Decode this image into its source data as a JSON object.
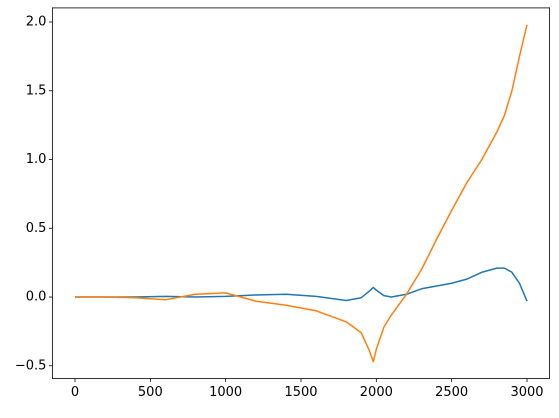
{
  "chart_data": {
    "type": "line",
    "x": [
      0,
      200,
      400,
      600,
      800,
      1000,
      1200,
      1400,
      1600,
      1800,
      1900,
      1950,
      1980,
      2000,
      2050,
      2100,
      2200,
      2300,
      2400,
      2500,
      2600,
      2700,
      2800,
      2850,
      2900,
      2950,
      3000
    ],
    "series": [
      {
        "color": "#1f77b4",
        "values": [
          0,
          0,
          0,
          0.005,
          0,
          0.005,
          0.015,
          0.02,
          0.005,
          -0.025,
          -0.005,
          0.04,
          0.07,
          0.05,
          0.01,
          0.0,
          0.02,
          0.06,
          0.08,
          0.1,
          0.13,
          0.18,
          0.21,
          0.21,
          0.18,
          0.1,
          -0.03
        ]
      },
      {
        "color": "#ff7f0e",
        "values": [
          0,
          0,
          -0.005,
          -0.02,
          0.02,
          0.03,
          -0.03,
          -0.06,
          -0.1,
          -0.18,
          -0.26,
          -0.38,
          -0.47,
          -0.38,
          -0.22,
          -0.13,
          0.02,
          0.2,
          0.42,
          0.63,
          0.83,
          1.0,
          1.2,
          1.32,
          1.5,
          1.75,
          1.98
        ]
      }
    ],
    "xlim": [
      -150,
      3150
    ],
    "xticks": [
      0,
      500,
      1000,
      1500,
      2000,
      2500,
      3000
    ],
    "ylim": [
      -0.5925,
      2.1025
    ],
    "yticks": [
      {
        "value": -0.5,
        "label": "−0.5"
      },
      {
        "value": 0,
        "label": "0.0"
      },
      {
        "value": 0.5,
        "label": "0.5"
      },
      {
        "value": 1,
        "label": "1.0"
      },
      {
        "value": 1.5,
        "label": "1.5"
      },
      {
        "value": 2,
        "label": "2.0"
      }
    ]
  }
}
